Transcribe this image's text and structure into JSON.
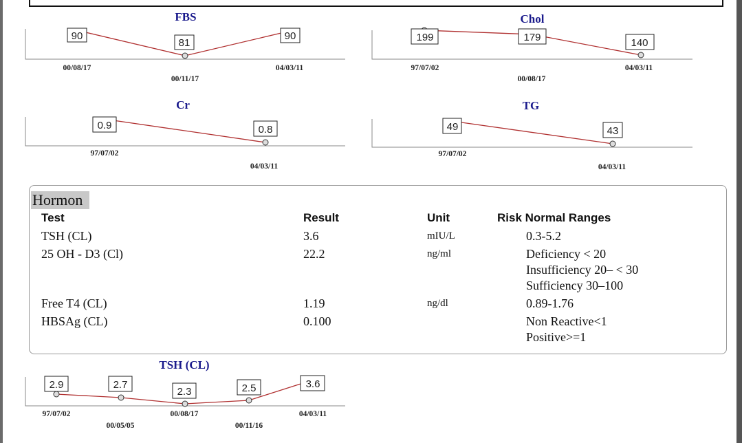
{
  "charts": [
    {
      "id": "fbs",
      "title": "FBS",
      "values": [
        "90",
        "81",
        "90"
      ],
      "dates": [
        "00/08/17",
        "00/11/17",
        "04/03/11"
      ]
    },
    {
      "id": "chol",
      "title": "Chol",
      "values": [
        "199",
        "179",
        "140"
      ],
      "dates": [
        "97/07/02",
        "00/08/17",
        "04/03/11"
      ]
    },
    {
      "id": "cr",
      "title": "Cr",
      "values": [
        "0.9",
        "0.8"
      ],
      "dates": [
        "97/07/02",
        "04/03/11"
      ]
    },
    {
      "id": "tg",
      "title": "TG",
      "values": [
        "49",
        "43"
      ],
      "dates": [
        "97/07/02",
        "04/03/11"
      ]
    },
    {
      "id": "tsh",
      "title": "TSH (CL)",
      "values": [
        "2.9",
        "2.7",
        "2.3",
        "2.5",
        "3.6"
      ],
      "dates": [
        "97/07/02",
        "00/05/05",
        "00/08/17",
        "00/11/16",
        "04/03/11"
      ]
    }
  ],
  "hormon": {
    "title": "Hormon",
    "headers": {
      "test": "Test",
      "result": "Result",
      "unit": "Unit",
      "ranges": "Risk Normal Ranges"
    },
    "rows": [
      {
        "test": "TSH (CL)",
        "result": "3.6",
        "unit": "mIU/L",
        "ranges": [
          "0.3-5.2"
        ]
      },
      {
        "test": "25 OH - D3 (Cl)",
        "result": "22.2",
        "unit": "ng/ml",
        "ranges": [
          "Deficiency < 20",
          "Insufficiency  20– < 30",
          "Sufficiency 30–100"
        ]
      },
      {
        "test": "Free T4 (CL)",
        "result": "1.19",
        "unit": "ng/dl",
        "ranges": [
          "0.89-1.76"
        ]
      },
      {
        "test": "HBSAg (CL)",
        "result": "0.100",
        "unit": "",
        "ranges": [
          "Non Reactive<1",
          "Positive>=1"
        ]
      }
    ]
  },
  "colors": {
    "title": "#1a1a8c",
    "series": "#b03030",
    "label_bg": "#c8c8c8"
  }
}
